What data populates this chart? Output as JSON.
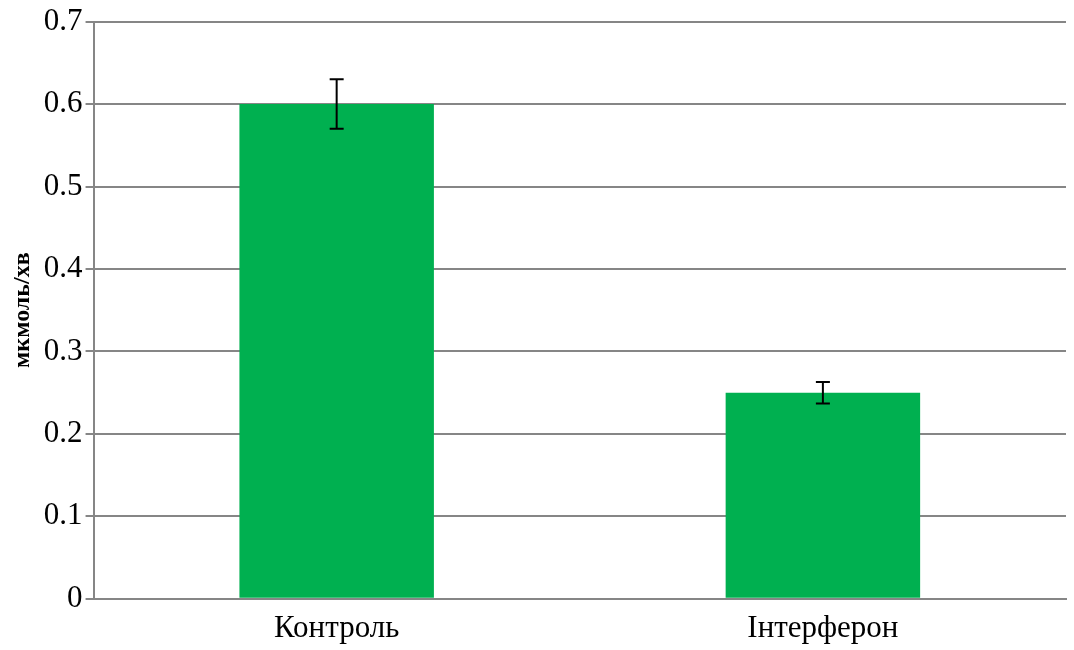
{
  "chart_data": {
    "type": "bar",
    "ylabel": "мкмоль/хв",
    "categories": [
      "Контроль",
      "Інтерферон"
    ],
    "values": [
      0.6,
      0.25
    ],
    "errors": [
      0.03,
      0.013
    ],
    "color": "#00b050",
    "ylim": [
      0,
      0.7
    ],
    "yticks": [
      0,
      0.1,
      0.2,
      0.3,
      0.4,
      0.5,
      0.6,
      0.7
    ],
    "grid": "y",
    "legend": false
  }
}
